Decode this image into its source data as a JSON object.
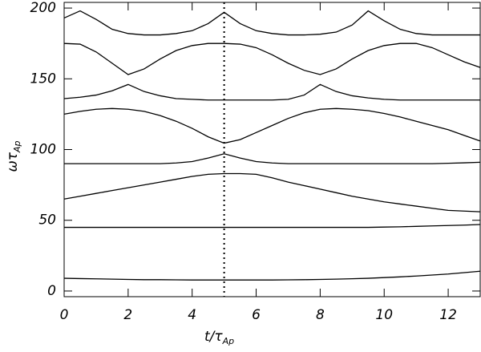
{
  "chart_data": {
    "type": "line",
    "xlabel": {
      "main": "t/τ",
      "sub": "Ap"
    },
    "ylabel": {
      "main": "ωτ",
      "sub": "Ap"
    },
    "x": [
      0,
      0.5,
      1,
      1.5,
      2,
      2.5,
      3,
      3.5,
      4,
      4.5,
      5,
      5.5,
      6,
      6.5,
      7,
      7.5,
      8,
      8.5,
      9,
      9.5,
      10,
      10.5,
      11,
      11.5,
      12,
      12.5,
      13
    ],
    "series": [
      {
        "color": "#000000",
        "values": [
          9,
          8.8,
          8.6,
          8.4,
          8.2,
          8,
          8,
          7.9,
          7.8,
          7.8,
          7.8,
          7.8,
          7.8,
          7.8,
          7.9,
          8,
          8.2,
          8.4,
          8.7,
          9,
          9.5,
          10,
          10.6,
          11.3,
          12,
          13,
          14
        ]
      },
      {
        "color": "#000000",
        "values": [
          45,
          45,
          45,
          45,
          45,
          45,
          45,
          45,
          45,
          45,
          45,
          45,
          45,
          45,
          45,
          45,
          45,
          45,
          45,
          45,
          45.2,
          45.4,
          45.7,
          46,
          46.3,
          46.6,
          47
        ]
      },
      {
        "color": "#000000",
        "values": [
          65,
          67,
          69,
          71,
          73,
          75,
          77,
          79,
          81,
          82.5,
          83,
          83,
          82.5,
          80,
          77,
          74.5,
          72,
          69.5,
          67,
          65,
          63,
          61.5,
          60,
          58.5,
          57,
          56.5,
          56
        ]
      },
      {
        "color": "#000000",
        "values": [
          90,
          90,
          90,
          90,
          90,
          90,
          90,
          90.5,
          91.5,
          94,
          97,
          94,
          91.5,
          90.5,
          90,
          90,
          90,
          90,
          90,
          90,
          90,
          90,
          90,
          90,
          90.3,
          90.6,
          91
        ]
      },
      {
        "color": "#000000",
        "values": [
          125,
          127,
          128.5,
          129,
          128.5,
          127,
          124,
          120,
          115,
          109,
          104.5,
          107,
          112,
          117,
          122,
          126,
          128.5,
          129,
          128.5,
          127.5,
          125.5,
          123,
          120,
          117,
          114,
          110,
          106
        ]
      },
      {
        "color": "#000000",
        "values": [
          136,
          137,
          138.5,
          141.5,
          146,
          141,
          138,
          136,
          135.5,
          135,
          135,
          135,
          135,
          135,
          135.5,
          138.5,
          146,
          141,
          138,
          136.5,
          135.5,
          135,
          135,
          135,
          135,
          135,
          135
        ]
      },
      {
        "color": "#000000",
        "values": [
          175,
          174.5,
          169,
          161,
          153,
          157,
          164,
          170,
          173.5,
          175,
          175,
          174.5,
          172,
          167,
          161,
          156,
          153,
          157,
          164,
          170,
          173.5,
          175,
          175,
          172,
          167,
          162,
          158
        ]
      },
      {
        "color": "#000000",
        "values": [
          193,
          198,
          192,
          185,
          182,
          181,
          181,
          182,
          184,
          189,
          197,
          189,
          184,
          182,
          181,
          181,
          181.5,
          183,
          188,
          198,
          191,
          185,
          182,
          181,
          181,
          181,
          181
        ]
      }
    ],
    "vline": 5,
    "xlim": [
      0,
      13
    ],
    "ylim": [
      -4,
      204
    ],
    "xticks": [
      0,
      2,
      4,
      6,
      8,
      10,
      12
    ],
    "yticks": [
      0,
      50,
      100,
      150,
      200
    ]
  }
}
